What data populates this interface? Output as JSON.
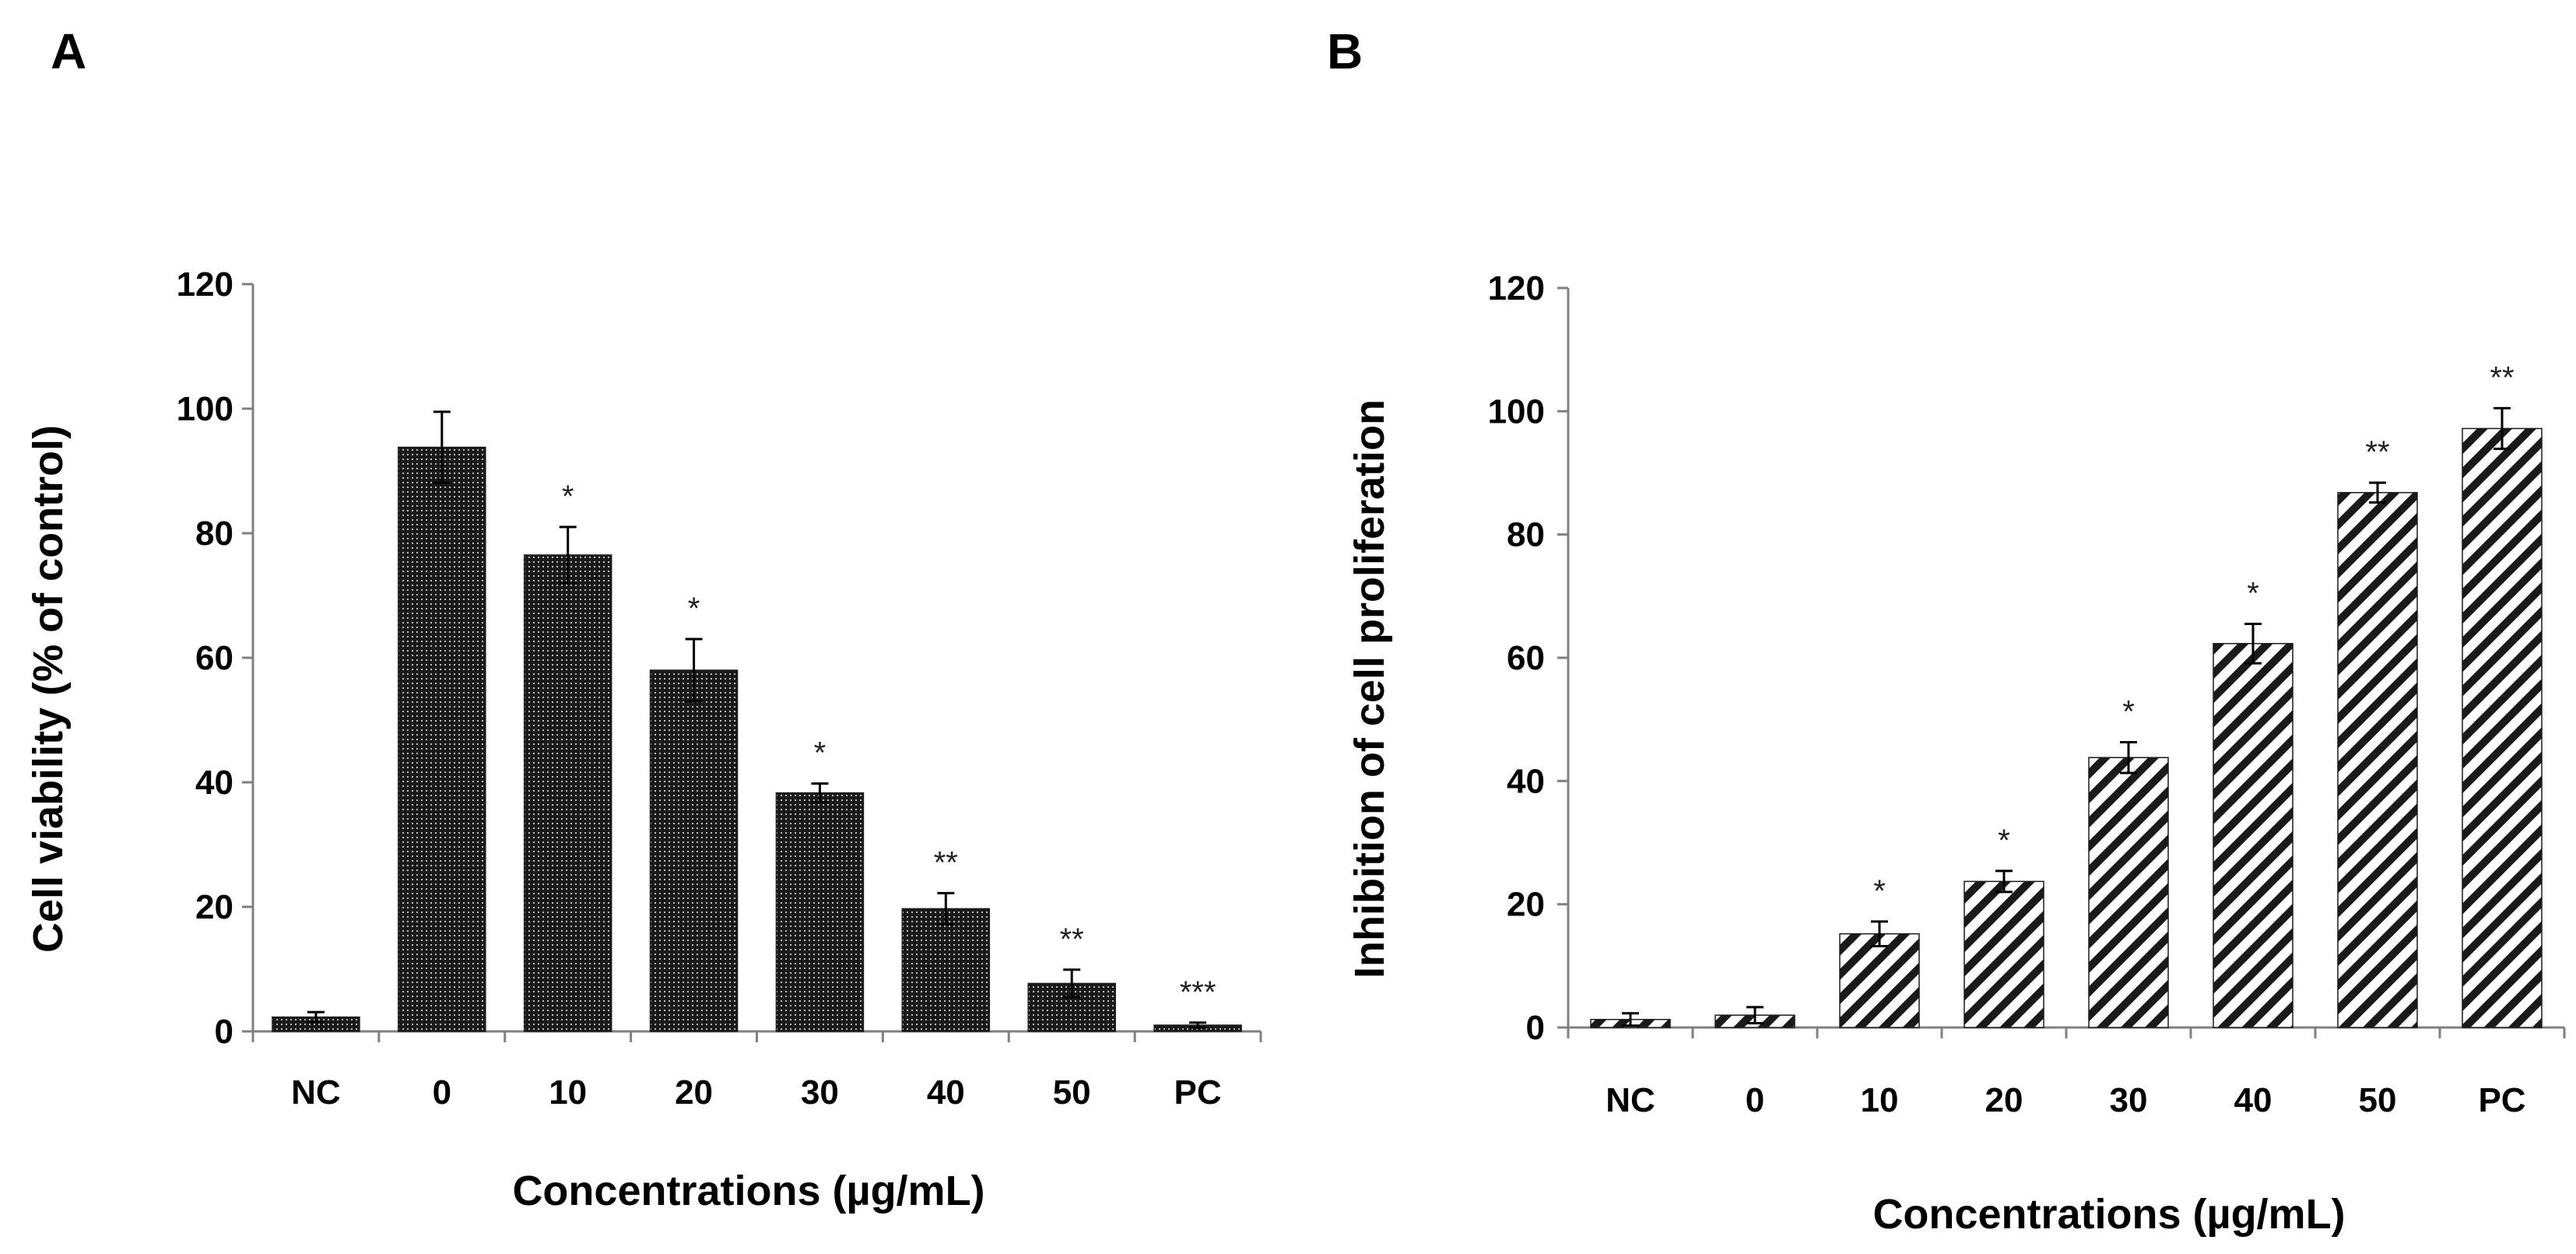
{
  "chart_data": [
    {
      "type": "bar",
      "panel": "A",
      "categories": [
        "NC",
        "0",
        "10",
        "20",
        "30",
        "40",
        "50",
        "PC"
      ],
      "values": [
        2.3,
        93.8,
        76.5,
        58.0,
        38.3,
        19.7,
        7.7,
        1.0
      ],
      "errors": [
        0.8,
        5.7,
        4.5,
        5.0,
        1.5,
        2.5,
        2.2,
        0.4
      ],
      "significance": [
        "",
        "",
        "*",
        "*",
        "*",
        "**",
        "**",
        "***"
      ],
      "xlabel": "Concentrations (µg/mL)",
      "ylabel": "Cell viability (% of control)",
      "ylim": [
        0,
        120
      ],
      "yticks": [
        0,
        20,
        40,
        60,
        80,
        100,
        120
      ],
      "fill": "dotted",
      "grid": false
    },
    {
      "type": "bar",
      "panel": "B",
      "categories": [
        "NC",
        "0",
        "10",
        "20",
        "30",
        "40",
        "50",
        "PC"
      ],
      "values": [
        1.3,
        2.0,
        15.2,
        23.7,
        43.8,
        62.3,
        86.8,
        97.2
      ],
      "errors": [
        1.0,
        1.3,
        2.0,
        1.7,
        2.5,
        3.2,
        1.6,
        3.3
      ],
      "significance": [
        "",
        "",
        "*",
        "*",
        "*",
        "*",
        "**",
        "**"
      ],
      "xlabel": "Concentrations (µg/mL)",
      "ylabel": "Inhibition of cell proliferation",
      "ylim": [
        0,
        120
      ],
      "yticks": [
        0,
        20,
        40,
        60,
        80,
        100,
        120
      ],
      "fill": "hatched",
      "grid": false
    }
  ],
  "colors": {
    "bar": "#1a1a1a",
    "axis": "#808080",
    "text": "#000000",
    "background": "#ffffff"
  }
}
